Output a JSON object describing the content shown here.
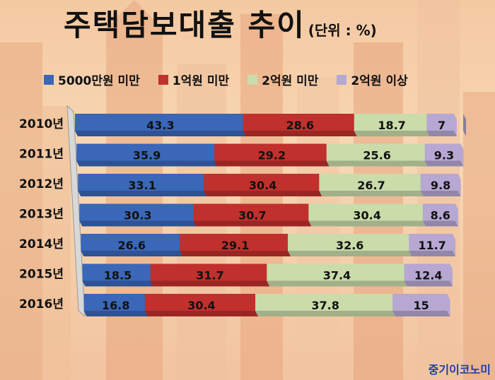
{
  "title": "주택담보대출 추이",
  "unit": "(단위 : %)",
  "brand": "중기이코노미",
  "colors": {
    "s1": "#3a67b8",
    "s2": "#c0302c",
    "s3": "#c9dcaa",
    "s4": "#b6a7d3"
  },
  "chart_data": {
    "type": "bar",
    "orientation": "horizontal",
    "stacked": true,
    "categories": [
      "2010년",
      "2011년",
      "2012년",
      "2013년",
      "2014년",
      "2015년",
      "2016년"
    ],
    "series": [
      {
        "name": "5000만원 미만",
        "values": [
          43.3,
          35.9,
          33.1,
          30.3,
          26.6,
          18.5,
          16.8
        ]
      },
      {
        "name": "1억원 미만",
        "values": [
          28.6,
          29.2,
          30.4,
          30.7,
          29.1,
          31.7,
          30.4
        ]
      },
      {
        "name": "2억원 미만",
        "values": [
          18.7,
          25.6,
          26.7,
          30.4,
          32.6,
          37.4,
          37.8
        ]
      },
      {
        "name": "2억원 이상",
        "values": [
          7,
          9.3,
          9.8,
          8.6,
          11.7,
          12.4,
          15
        ]
      }
    ],
    "xlim": [
      0,
      100
    ],
    "legend": "top"
  }
}
